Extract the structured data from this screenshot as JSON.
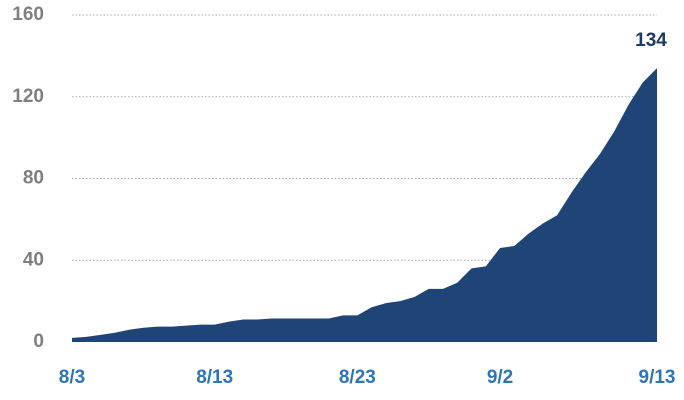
{
  "chart_data": {
    "type": "area",
    "color": "#1f4576",
    "categories": [
      "8/3",
      null,
      null,
      null,
      null,
      null,
      null,
      null,
      null,
      null,
      "8/13",
      null,
      null,
      null,
      null,
      null,
      null,
      null,
      null,
      null,
      "8/23",
      null,
      null,
      null,
      null,
      null,
      null,
      null,
      null,
      null,
      "9/2",
      null,
      null,
      null,
      null,
      null,
      null,
      null,
      null,
      null,
      null,
      "9/13"
    ],
    "values": [
      2,
      2.5,
      3.5,
      4.5,
      6,
      7,
      7.5,
      7.5,
      8,
      8.5,
      8.5,
      10,
      11,
      11,
      11.5,
      11.5,
      11.5,
      11.5,
      11.5,
      13,
      13,
      17,
      19,
      20,
      22,
      26,
      26,
      29,
      36,
      37,
      46,
      47,
      53,
      58,
      62,
      73,
      83,
      92,
      103,
      116,
      127,
      134
    ],
    "ylim": [
      0,
      160
    ],
    "yticks": [
      0,
      40,
      80,
      120,
      160
    ],
    "grid": true
  }
}
